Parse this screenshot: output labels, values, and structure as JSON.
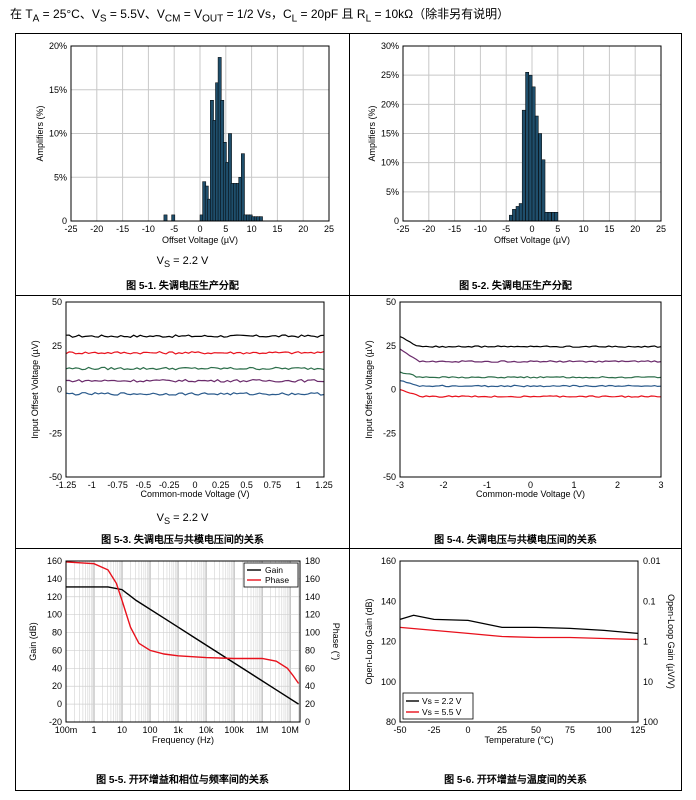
{
  "header": {
    "prefix": "在 T",
    "ta_sub": "A",
    "p2": " = 25°C、V",
    "s_sub": "S",
    "p3": " = 5.5V、V",
    "cm_sub": "CM",
    "p4": " = V",
    "out_sub": "OUT",
    "p5": " = 1/2 Vs，C",
    "cl_sub": "L",
    "p6": " = 20pF 且 R",
    "rl_sub": "L",
    "p7": " = 10kΩ（除非另有说明）"
  },
  "captions": {
    "fig1": "图 5-1. 失调电压生产分配",
    "fig2": "图 5-2. 失调电压生产分配",
    "fig3": "图 5-3. 失调电压与共模电压间的关系",
    "fig4": "图 5-4. 失调电压与共模电压间的关系",
    "fig5": "图 5-5. 开环增益和相位与频率间的关系",
    "fig6": "图 5-6. 开环增益与温度间的关系"
  },
  "notes": {
    "fig1_vs": "V",
    "fig1_vs_sub": "S",
    "fig1_vs_val": " = 2.2 V",
    "fig3_vs": "V",
    "fig3_vs_sub": "S",
    "fig3_vs_val": " = 2.2 V"
  },
  "colors": {
    "bar": "#1f4e6b",
    "black": "#000000",
    "red": "#e8111c",
    "green": "#2c6e4a",
    "purple": "#6a2a6b",
    "blue": "#2a5a8c",
    "grid": "#c8c8c8"
  },
  "chart_data": [
    {
      "id": "fig1",
      "type": "bar",
      "title": "",
      "xlabel": "Offset Voltage (µV)",
      "ylabel": "Amplifiers (%)",
      "xlim": [
        -25,
        25
      ],
      "ylim": [
        0,
        20
      ],
      "xticks": [
        "-25",
        "-20",
        "-15",
        "-10",
        "-5",
        "0",
        "5",
        "10",
        "15",
        "20",
        "25"
      ],
      "yticks": [
        "0",
        "5%",
        "10%",
        "15%",
        "20%"
      ],
      "bin_width": 0.625,
      "bins": [
        -7,
        -5.5,
        0,
        0.5,
        1,
        1.5,
        2,
        2.5,
        3,
        3.5,
        4,
        4.5,
        5,
        5.5,
        6,
        6.5,
        7,
        7.5,
        8,
        8.5,
        9,
        9.5,
        10,
        10.5,
        11,
        11.5
      ],
      "values": [
        0.7,
        0.7,
        0.7,
        4.5,
        4.0,
        2.5,
        13.8,
        11.5,
        15.8,
        18.7,
        13.8,
        9.0,
        6.7,
        10.0,
        4.3,
        4.3,
        4.3,
        5.0,
        7.7,
        0.7,
        0.7,
        0.7,
        0.5,
        0.5,
        0.5,
        0.5
      ]
    },
    {
      "id": "fig2",
      "type": "bar",
      "title": "",
      "xlabel": "Offset Voltage (µV)",
      "ylabel": "Amplifiers (%)",
      "xlim": [
        -25,
        25
      ],
      "ylim": [
        0,
        30
      ],
      "xticks": [
        "-25",
        "-20",
        "-15",
        "-10",
        "-5",
        "0",
        "5",
        "10",
        "15",
        "20",
        "25"
      ],
      "yticks": [
        "0",
        "5%",
        "10%",
        "15%",
        "20%",
        "25%",
        "30%"
      ],
      "bin_width": 0.625,
      "bins": [
        -4.4,
        -3.8,
        -3.1,
        -2.5,
        -1.9,
        -1.25,
        -0.6,
        0,
        0.6,
        1.25,
        1.9,
        2.5,
        3.1,
        3.8,
        4.4
      ],
      "values": [
        1.0,
        2.0,
        2.5,
        3.0,
        19.0,
        25.5,
        25.0,
        23.0,
        18.0,
        15.0,
        10.5,
        1.5,
        1.5,
        1.5,
        1.5
      ]
    },
    {
      "id": "fig3",
      "type": "line",
      "title": "",
      "xlabel": "Common-mode Voltage (V)",
      "ylabel": "Input Offset Voltage (µV)",
      "xlim": [
        -1.25,
        1.25
      ],
      "ylim": [
        -50,
        50
      ],
      "xticks": [
        "-1.25",
        "-1",
        "-0.75",
        "-0.5",
        "-0.25",
        "0",
        "0.25",
        "0.5",
        "0.75",
        "1",
        "1.25"
      ],
      "yticks": [
        "-50",
        "-25",
        "0",
        "25",
        "50"
      ],
      "series": [
        {
          "name": "black",
          "color": "#000000",
          "base": 30.5
        },
        {
          "name": "red",
          "color": "#e8111c",
          "base": 21.0
        },
        {
          "name": "green",
          "color": "#2c6e4a",
          "base": 12.0
        },
        {
          "name": "purple",
          "color": "#6a2a6b",
          "base": 5.0
        },
        {
          "name": "blue",
          "color": "#2a5a8c",
          "base": -2.5
        }
      ]
    },
    {
      "id": "fig4",
      "type": "line",
      "title": "",
      "xlabel": "Common-mode Voltage (V)",
      "ylabel": "Input Offset Voltage (µV)",
      "xlim": [
        -3,
        3
      ],
      "ylim": [
        -50,
        50
      ],
      "xticks": [
        "-3",
        "-2",
        "-1",
        "0",
        "1",
        "2",
        "3"
      ],
      "yticks": [
        "-50",
        "-25",
        "0",
        "25",
        "50"
      ],
      "series": [
        {
          "name": "black",
          "color": "#000000",
          "start": 30,
          "base": 24.5
        },
        {
          "name": "purple",
          "color": "#6a2a6b",
          "start": 23,
          "base": 16.0
        },
        {
          "name": "green",
          "color": "#2c6e4a",
          "start": 10,
          "base": 7.0
        },
        {
          "name": "blue",
          "color": "#2a5a8c",
          "start": 5,
          "base": 2.0
        },
        {
          "name": "red",
          "color": "#e8111c",
          "start": 0,
          "base": -4.0
        }
      ]
    },
    {
      "id": "fig5",
      "type": "line",
      "title": "",
      "xlabel": "Frequency (Hz)",
      "ylabel": "Gain (dB)",
      "y2label": "Phase (°)",
      "xticks": [
        "100m",
        "1",
        "10",
        "100",
        "1k",
        "10k",
        "100k",
        "1M",
        "10M"
      ],
      "yticks": [
        "-20",
        "0",
        "20",
        "40",
        "60",
        "80",
        "100",
        "120",
        "140",
        "160"
      ],
      "y2ticks": [
        "0",
        "20",
        "40",
        "60",
        "80",
        "100",
        "120",
        "140",
        "160",
        "180"
      ],
      "ylim": [
        -20,
        160
      ],
      "y2lim": [
        0,
        180
      ],
      "legend": [
        "Gain",
        "Phase"
      ],
      "series": [
        {
          "name": "Gain",
          "color": "#000000",
          "points": [
            [
              -1,
              131
            ],
            [
              0.5,
              131
            ],
            [
              1.0,
              128
            ],
            [
              1.5,
              116
            ],
            [
              2.5,
              96
            ],
            [
              3.5,
              76
            ],
            [
              4.5,
              56
            ],
            [
              5.5,
              36
            ],
            [
              6.5,
              16
            ],
            [
              7.3,
              0
            ]
          ]
        },
        {
          "name": "Phase",
          "color": "#e8111c",
          "points": [
            [
              -1,
              179
            ],
            [
              0,
              177
            ],
            [
              0.5,
              170
            ],
            [
              0.8,
              155
            ],
            [
              1.0,
              136
            ],
            [
              1.3,
              106
            ],
            [
              1.6,
              88
            ],
            [
              2.0,
              80
            ],
            [
              2.5,
              76
            ],
            [
              3.0,
              74
            ],
            [
              4.0,
              72
            ],
            [
              5.0,
              71
            ],
            [
              6.0,
              71
            ],
            [
              6.5,
              68
            ],
            [
              6.9,
              60
            ],
            [
              7.1,
              52
            ],
            [
              7.3,
              43
            ]
          ]
        }
      ]
    },
    {
      "id": "fig6",
      "type": "line",
      "title": "",
      "xlabel": "Temperature (°C)",
      "ylabel": "Open-Loop Gain (dB)",
      "y2label": "Open-Loop Gain (µV/V)",
      "xlim": [
        -50,
        125
      ],
      "ylim": [
        80,
        160
      ],
      "xticks": [
        "-50",
        "-25",
        "0",
        "25",
        "50",
        "75",
        "100",
        "125"
      ],
      "yticks": [
        "80",
        "100",
        "120",
        "140",
        "160"
      ],
      "y2ticks": [
        "100",
        "10",
        "1",
        "0.1",
        "0.01"
      ],
      "legend": [
        "Vs = 2.2 V",
        "Vs = 5.5 V"
      ],
      "legend_sub": [
        "S",
        "S"
      ],
      "series": [
        {
          "name": "Vs = 2.2 V",
          "color": "#000000",
          "points": [
            [
              -50,
              131
            ],
            [
              -40,
              133
            ],
            [
              -25,
              131
            ],
            [
              0,
              130.5
            ],
            [
              25,
              127
            ],
            [
              50,
              127
            ],
            [
              75,
              126.5
            ],
            [
              100,
              125.5
            ],
            [
              125,
              124
            ]
          ]
        },
        {
          "name": "Vs = 5.5 V",
          "color": "#e8111c",
          "points": [
            [
              -50,
              127
            ],
            [
              -25,
              125.5
            ],
            [
              0,
              124
            ],
            [
              25,
              122.5
            ],
            [
              50,
              122
            ],
            [
              75,
              122
            ],
            [
              100,
              121.5
            ],
            [
              125,
              121
            ]
          ]
        }
      ]
    }
  ]
}
